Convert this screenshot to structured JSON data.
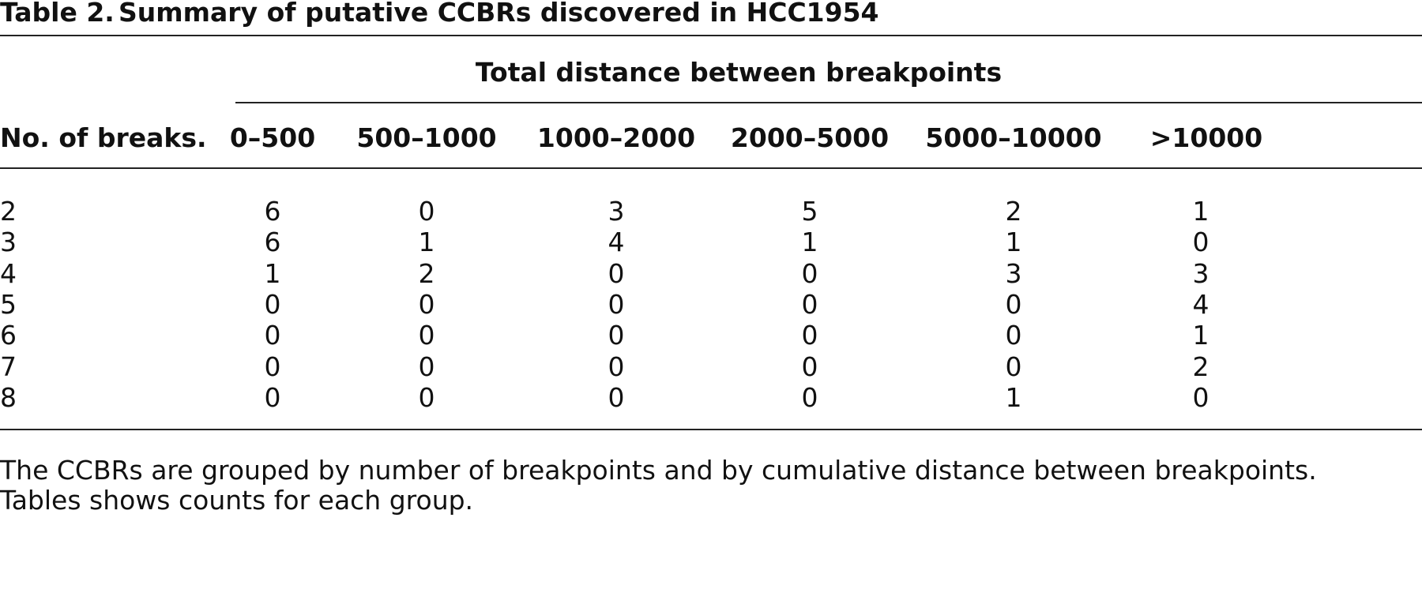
{
  "title": {
    "label": "Table 2.",
    "text": "Summary of putative CCBRs discovered in HCC1954"
  },
  "table": {
    "spanning_header": "Total distance between breakpoints",
    "headers": [
      "No. of breaks.",
      "0–500",
      "500–1000",
      "1000–2000",
      "2000–5000",
      "5000–10000",
      ">10000"
    ],
    "rows": [
      [
        2,
        6,
        0,
        3,
        5,
        2,
        1
      ],
      [
        3,
        6,
        1,
        4,
        1,
        1,
        0
      ],
      [
        4,
        1,
        2,
        0,
        0,
        3,
        3
      ],
      [
        5,
        0,
        0,
        0,
        0,
        0,
        4
      ],
      [
        6,
        0,
        0,
        0,
        0,
        0,
        1
      ],
      [
        7,
        0,
        0,
        0,
        0,
        0,
        2
      ],
      [
        8,
        0,
        0,
        0,
        0,
        1,
        0
      ]
    ]
  },
  "footnote": [
    "The CCBRs are grouped by number of breakpoints and by cumulative distance between breakpoints.",
    "Tables shows counts for each group."
  ]
}
